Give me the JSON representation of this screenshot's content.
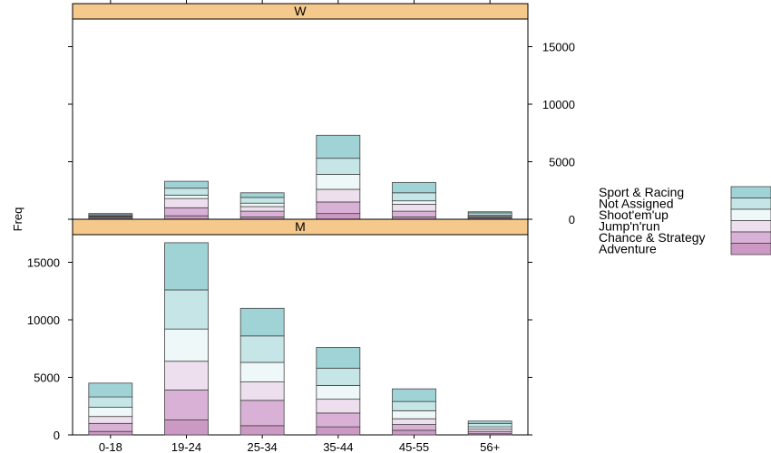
{
  "chart_data": {
    "type": "bar",
    "stacked": true,
    "ylabel": "Freq",
    "ylim": [
      0,
      18000
    ],
    "yticks": [
      "0",
      "5000",
      "10000",
      "15000"
    ],
    "categories": [
      "0-18",
      "19-24",
      "25-34",
      "35-44",
      "45-55",
      "56+"
    ],
    "legend_position": "right",
    "series_colors": {
      "Adventure": "#cc99c4",
      "Chance & Strategy": "#d9b1d6",
      "Jump'n'run": "#eddfee",
      "Shoot'em'up": "#eff8f8",
      "Not Assigned": "#c5e5e6",
      "Sport & Racing": "#9fd3d6"
    },
    "legend": [
      "Sport & Racing",
      "Not Assigned",
      "Shoot'em'up",
      "Jump'n'run",
      "Chance & Strategy",
      "Adventure"
    ],
    "panels": [
      {
        "label": "W",
        "series": [
          {
            "name": "Adventure",
            "values": [
              100,
              300,
              200,
              500,
              200,
              100
            ]
          },
          {
            "name": "Chance & Strategy",
            "values": [
              100,
              700,
              500,
              1000,
              500,
              100
            ]
          },
          {
            "name": "Jump'n'run",
            "values": [
              50,
              800,
              400,
              1100,
              600,
              50
            ]
          },
          {
            "name": "Shoot'em'up",
            "values": [
              50,
              300,
              300,
              1300,
              300,
              100
            ]
          },
          {
            "name": "Not Assigned",
            "values": [
              100,
              600,
              500,
              1400,
              700,
              200
            ]
          },
          {
            "name": "Sport & Racing",
            "values": [
              100,
              600,
              400,
              2000,
              900,
              100
            ]
          }
        ]
      },
      {
        "label": "M",
        "series": [
          {
            "name": "Adventure",
            "values": [
              300,
              1300,
              800,
              700,
              400,
              100
            ]
          },
          {
            "name": "Chance & Strategy",
            "values": [
              700,
              2600,
              2200,
              1200,
              500,
              200
            ]
          },
          {
            "name": "Jump'n'run",
            "values": [
              600,
              2500,
              1600,
              1200,
              500,
              200
            ]
          },
          {
            "name": "Shoot'em'up",
            "values": [
              800,
              2800,
              1700,
              1200,
              700,
              200
            ]
          },
          {
            "name": "Not Assigned",
            "values": [
              900,
              3400,
              2300,
              1500,
              800,
              300
            ]
          },
          {
            "name": "Sport & Racing",
            "values": [
              1200,
              4100,
              2400,
              1800,
              1100,
              200
            ]
          }
        ]
      }
    ]
  }
}
